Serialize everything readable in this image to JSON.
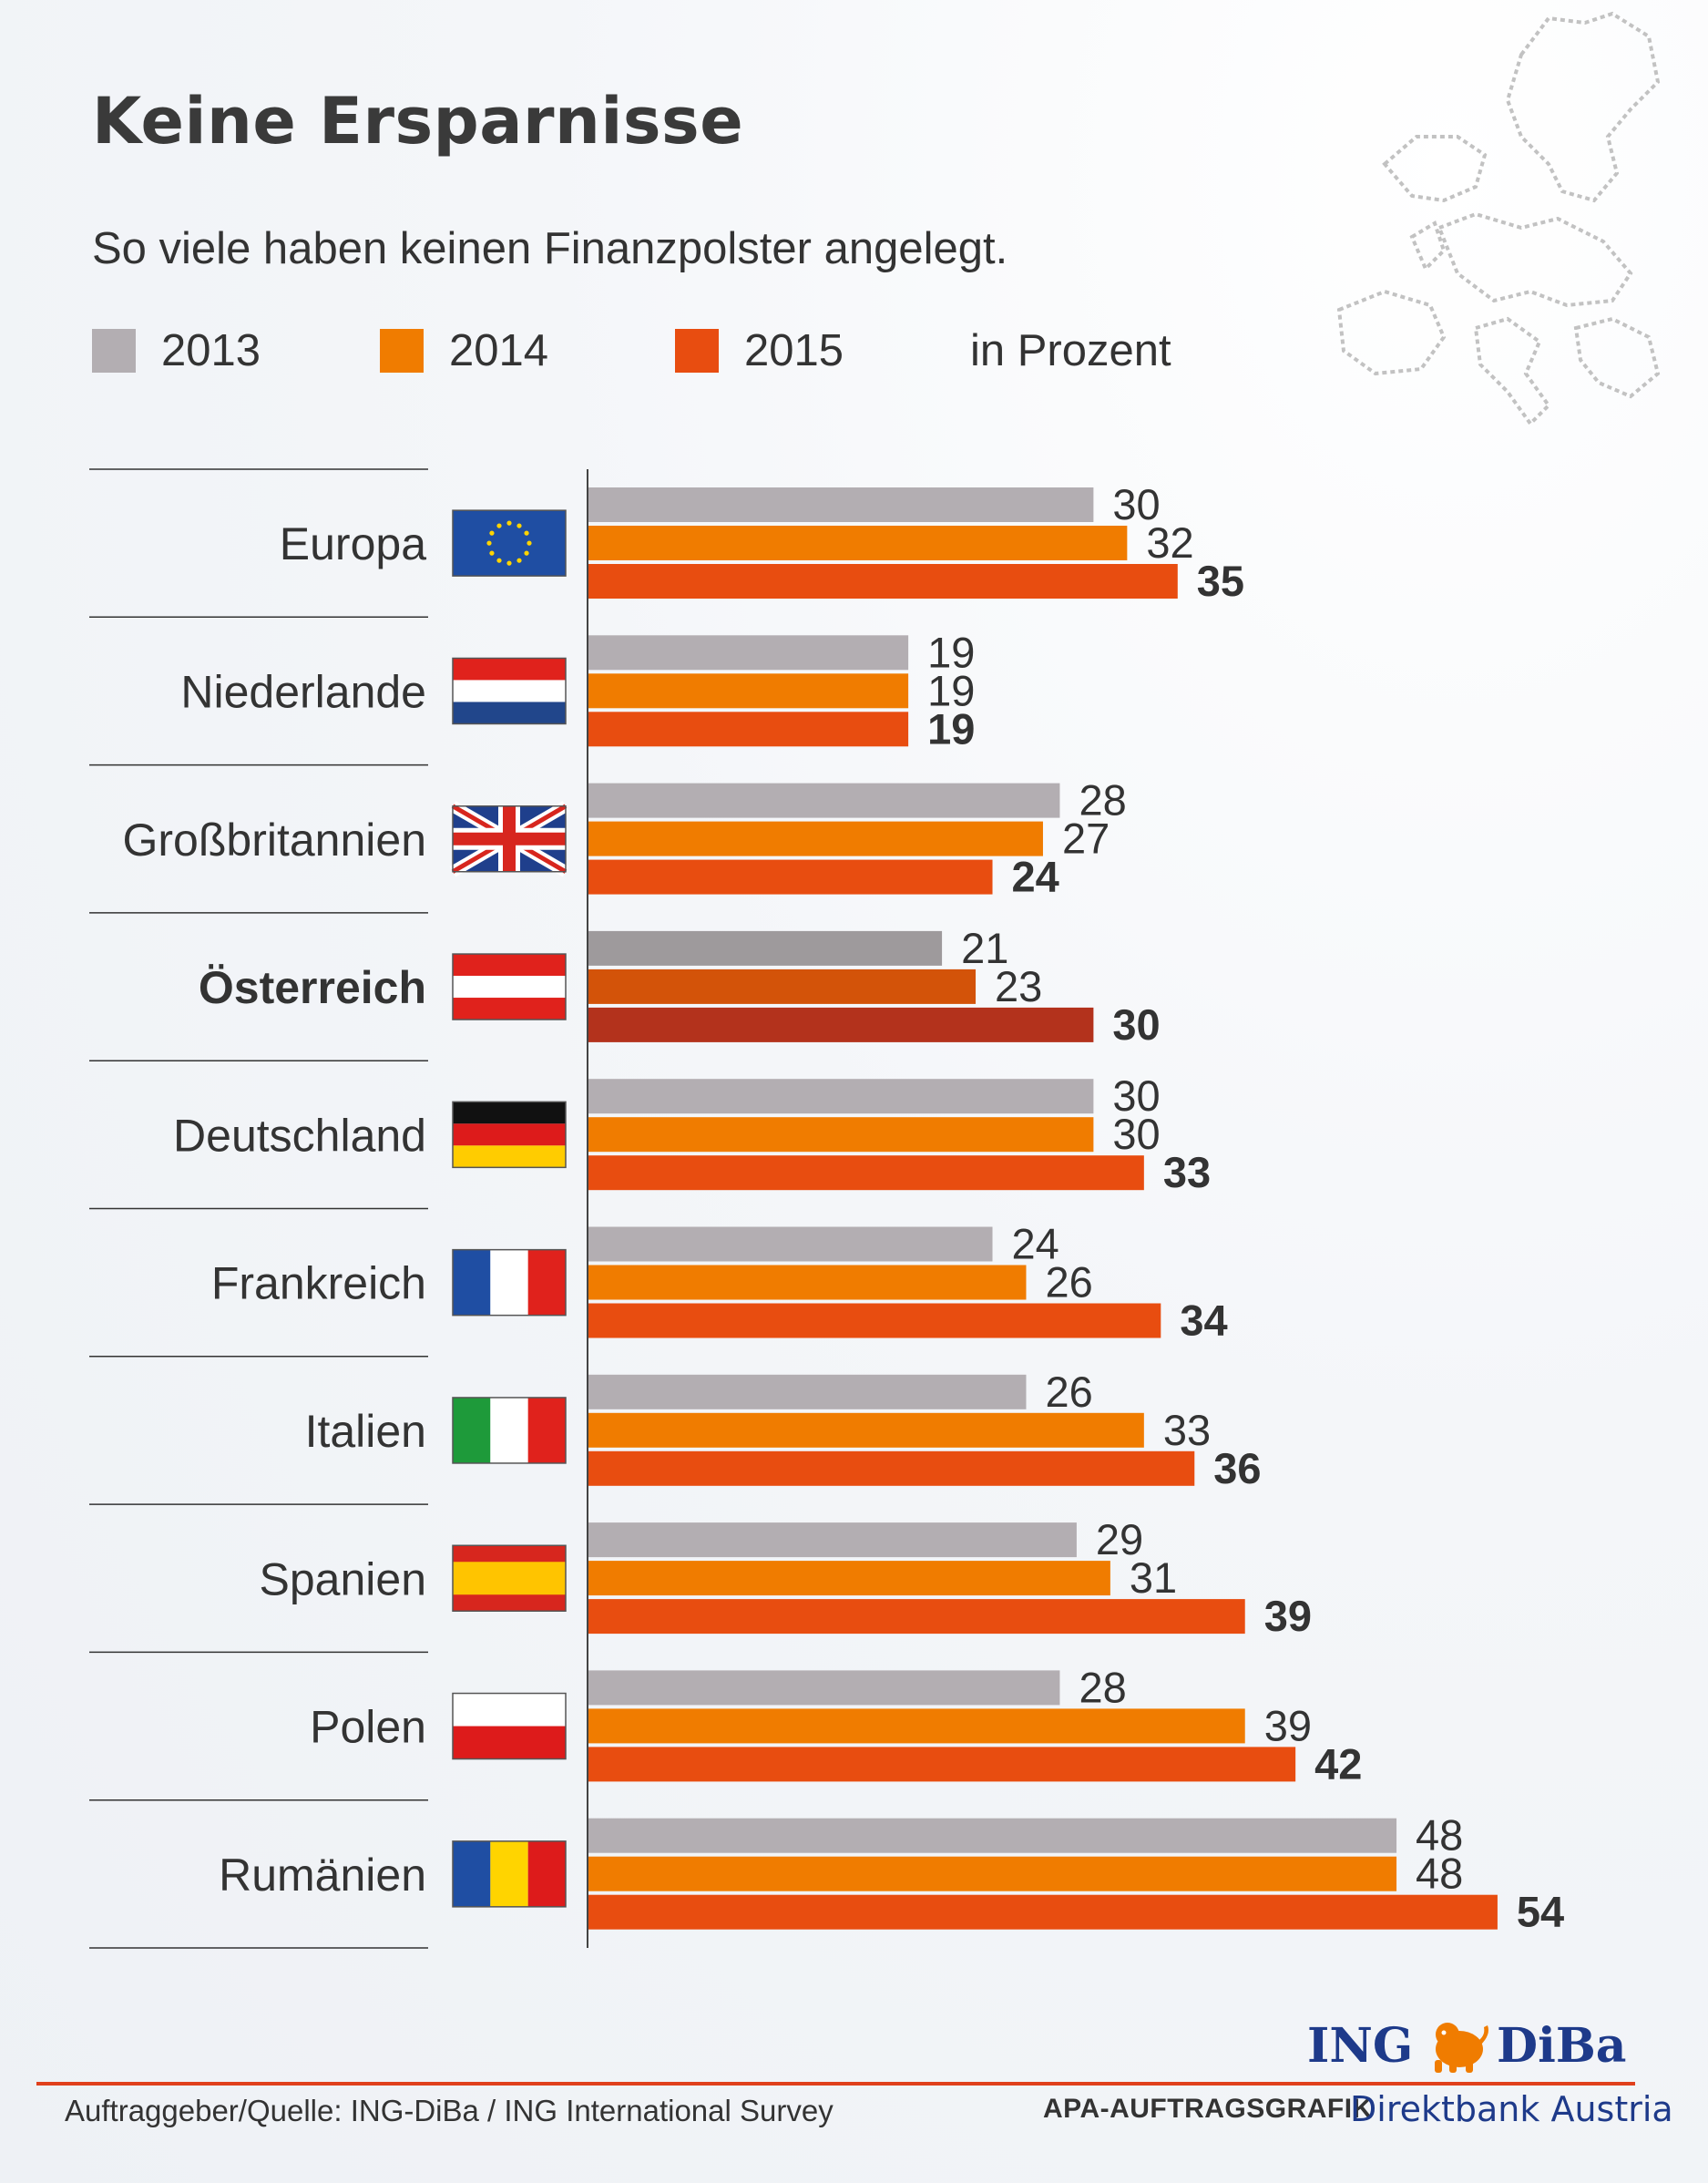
{
  "header": {
    "title": "Keine Ersparnisse",
    "subtitle": "So viele haben keinen Finanzpolster angelegt."
  },
  "legend": {
    "items": [
      {
        "label": "2013",
        "color": "#b3aeb2"
      },
      {
        "label": "2014",
        "color": "#f07c00"
      },
      {
        "label": "2015",
        "color": "#e84d10"
      }
    ],
    "unit_label": "in Prozent"
  },
  "chart_data": {
    "type": "bar",
    "orientation": "horizontal",
    "categories": [
      "Europa",
      "Niederlande",
      "Großbritannien",
      "Österreich",
      "Deutschland",
      "Frankreich",
      "Italien",
      "Spanien",
      "Polen",
      "Rumänien"
    ],
    "highlight_category": "Österreich",
    "series": [
      {
        "name": "2013",
        "values": [
          30,
          19,
          28,
          21,
          30,
          24,
          26,
          29,
          28,
          48
        ],
        "color": "#b3aeb2",
        "highlight_color": "#9e9a9c"
      },
      {
        "name": "2014",
        "values": [
          32,
          19,
          27,
          23,
          30,
          26,
          33,
          31,
          39,
          48
        ],
        "color": "#f07c00",
        "highlight_color": "#d35309"
      },
      {
        "name": "2015",
        "values": [
          35,
          19,
          24,
          30,
          33,
          34,
          36,
          39,
          42,
          54
        ],
        "color": "#e84d10",
        "highlight_color": "#b3321c"
      }
    ],
    "xlim": [
      0,
      54
    ],
    "grid": false,
    "legend_position": "top"
  },
  "flags": [
    {
      "category": "Europa",
      "icon": "eu-flag-icon"
    },
    {
      "category": "Niederlande",
      "icon": "netherlands-flag-icon"
    },
    {
      "category": "Großbritannien",
      "icon": "uk-flag-icon"
    },
    {
      "category": "Österreich",
      "icon": "austria-flag-icon"
    },
    {
      "category": "Deutschland",
      "icon": "germany-flag-icon"
    },
    {
      "category": "Frankreich",
      "icon": "france-flag-icon"
    },
    {
      "category": "Italien",
      "icon": "italy-flag-icon"
    },
    {
      "category": "Spanien",
      "icon": "spain-flag-icon"
    },
    {
      "category": "Polen",
      "icon": "poland-flag-icon"
    },
    {
      "category": "Rumänien",
      "icon": "romania-flag-icon"
    }
  ],
  "footer": {
    "source": "Auftraggeber/Quelle: ING-DiBa / ING International Survey",
    "credit": "APA-AUFTRAGSGRAFIK",
    "brand_left": "ING",
    "brand_right": "DiBa",
    "brand_sub": "Direktbank Austria",
    "brand_color": "#1e3a8a",
    "accent_color": "#e0401c"
  }
}
